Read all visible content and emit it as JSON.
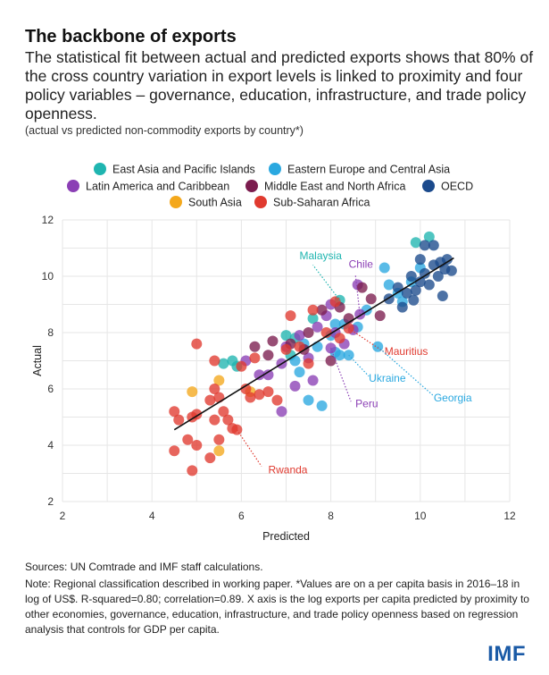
{
  "header": {
    "title": "The backbone of exports",
    "subtitle": "The statistical fit between actual and predicted exports shows that 80% of the cross country variation in export levels is linked to proximity and four policy variables – governance, education, infrastructure, and trade policy openness.",
    "note": "(actual vs predicted non-commodity exports by country*)"
  },
  "footer": {
    "sources": "Sources: UN Comtrade and IMF staff calculations.",
    "note": "Note: Regional classification described in working paper. *Values are on a per capita basis in 2016–18 in log of US$. R-squared=0.80; correlation=0.89. X axis is the log exports per capita predicted by proximity to other economies, governance, education, infrastructure, and trade policy openness based on regression analysis that controls for GDP per capita.",
    "logo": "IMF"
  },
  "chart_data": {
    "type": "scatter",
    "xlabel": "Predicted",
    "ylabel": "Actual",
    "xlim": [
      2,
      12
    ],
    "ylim": [
      2,
      12
    ],
    "xticks": [
      "2",
      "4",
      "6",
      "8",
      "10",
      "12"
    ],
    "yticks": [
      "2",
      "4",
      "6",
      "8",
      "10",
      "12"
    ],
    "grid": true,
    "legend_position": "top",
    "fit_line": {
      "x": [
        4.5,
        10.75
      ],
      "y": [
        4.55,
        10.65
      ]
    },
    "series": [
      {
        "name": "East Asia and Pacific Islands",
        "color": "#1fb5b0",
        "points": [
          [
            5.8,
            7.0
          ],
          [
            5.9,
            6.8
          ],
          [
            7.0,
            7.9
          ],
          [
            7.1,
            7.2
          ],
          [
            7.2,
            7.8
          ],
          [
            7.6,
            8.5
          ],
          [
            8.2,
            9.15
          ],
          [
            9.9,
            11.2
          ],
          [
            10.2,
            11.4
          ],
          [
            5.6,
            6.9
          ]
        ]
      },
      {
        "name": "Eastern Europe and Central Asia",
        "color": "#2aa8e0",
        "points": [
          [
            7.2,
            7.0
          ],
          [
            7.4,
            7.6
          ],
          [
            7.7,
            7.5
          ],
          [
            7.3,
            6.6
          ],
          [
            7.5,
            5.6
          ],
          [
            7.8,
            5.4
          ],
          [
            8.0,
            7.9
          ],
          [
            8.1,
            7.3
          ],
          [
            8.2,
            7.2
          ],
          [
            8.3,
            8.3
          ],
          [
            8.6,
            8.2
          ],
          [
            8.8,
            8.8
          ],
          [
            9.2,
            10.3
          ],
          [
            9.5,
            9.4
          ],
          [
            9.8,
            9.8
          ],
          [
            10.0,
            10.3
          ],
          [
            9.6,
            9.1
          ],
          [
            8.1,
            8.3
          ],
          [
            8.4,
            7.2
          ],
          [
            9.3,
            9.7
          ],
          [
            9.05,
            7.5
          ]
        ]
      },
      {
        "name": "Latin America and Caribbean",
        "color": "#8b3fb5",
        "points": [
          [
            6.4,
            6.5
          ],
          [
            6.6,
            6.5
          ],
          [
            6.9,
            6.9
          ],
          [
            7.0,
            7.5
          ],
          [
            7.3,
            7.9
          ],
          [
            7.5,
            7.1
          ],
          [
            7.7,
            8.2
          ],
          [
            7.9,
            8.6
          ],
          [
            8.0,
            9.0
          ],
          [
            8.1,
            8.0
          ],
          [
            8.3,
            7.6
          ],
          [
            8.5,
            8.1
          ],
          [
            7.6,
            6.3
          ],
          [
            6.9,
            5.2
          ],
          [
            7.2,
            6.1
          ],
          [
            6.1,
            7.0
          ],
          [
            8.65,
            8.65
          ],
          [
            8.0,
            7.45
          ],
          [
            8.6,
            9.7
          ]
        ]
      },
      {
        "name": "Middle East and North Africa",
        "color": "#7b1c4e",
        "points": [
          [
            6.3,
            7.5
          ],
          [
            6.6,
            7.2
          ],
          [
            7.1,
            7.6
          ],
          [
            7.5,
            8.0
          ],
          [
            7.8,
            8.8
          ],
          [
            8.0,
            7.0
          ],
          [
            8.2,
            8.9
          ],
          [
            8.4,
            8.5
          ],
          [
            8.7,
            9.6
          ],
          [
            9.1,
            8.6
          ],
          [
            7.4,
            7.4
          ],
          [
            6.7,
            7.7
          ],
          [
            8.9,
            9.2
          ]
        ]
      },
      {
        "name": "OECD",
        "color": "#1b4a8c",
        "points": [
          [
            9.3,
            9.2
          ],
          [
            9.5,
            9.6
          ],
          [
            9.6,
            8.9
          ],
          [
            9.7,
            9.4
          ],
          [
            9.8,
            10.0
          ],
          [
            9.9,
            9.5
          ],
          [
            10.0,
            9.8
          ],
          [
            10.1,
            10.1
          ],
          [
            10.2,
            9.7
          ],
          [
            10.3,
            10.4
          ],
          [
            10.4,
            10.0
          ],
          [
            10.5,
            9.3
          ],
          [
            10.6,
            10.6
          ],
          [
            10.7,
            10.2
          ],
          [
            10.3,
            11.1
          ],
          [
            10.1,
            11.1
          ],
          [
            10.45,
            10.5
          ],
          [
            9.85,
            9.15
          ],
          [
            10.55,
            10.25
          ],
          [
            10.0,
            10.6
          ]
        ]
      },
      {
        "name": "South Asia",
        "color": "#f4a81c",
        "points": [
          [
            4.9,
            5.9
          ],
          [
            5.5,
            6.3
          ],
          [
            5.5,
            3.8
          ],
          [
            6.2,
            5.9
          ]
        ]
      },
      {
        "name": "Sub-Saharan Africa",
        "color": "#e03a2f",
        "points": [
          [
            4.5,
            5.2
          ],
          [
            4.6,
            4.9
          ],
          [
            4.5,
            3.8
          ],
          [
            4.8,
            4.2
          ],
          [
            4.9,
            3.1
          ],
          [
            5.0,
            4.0
          ],
          [
            5.0,
            7.6
          ],
          [
            5.3,
            5.6
          ],
          [
            5.4,
            6.0
          ],
          [
            5.4,
            4.9
          ],
          [
            5.5,
            5.7
          ],
          [
            5.6,
            5.2
          ],
          [
            5.7,
            4.9
          ],
          [
            5.8,
            4.6
          ],
          [
            5.9,
            4.55
          ],
          [
            6.0,
            6.8
          ],
          [
            6.2,
            5.7
          ],
          [
            6.4,
            5.8
          ],
          [
            6.6,
            5.9
          ],
          [
            6.8,
            5.6
          ],
          [
            7.0,
            7.4
          ],
          [
            7.1,
            8.6
          ],
          [
            7.3,
            7.5
          ],
          [
            7.6,
            8.8
          ],
          [
            7.9,
            8.0
          ],
          [
            8.1,
            9.1
          ],
          [
            8.4,
            8.15
          ],
          [
            5.3,
            3.55
          ],
          [
            5.4,
            7.0
          ],
          [
            6.1,
            6.0
          ],
          [
            5.5,
            4.2
          ],
          [
            4.9,
            5.0
          ],
          [
            5.0,
            5.1
          ],
          [
            6.3,
            7.1
          ],
          [
            7.5,
            6.9
          ],
          [
            8.2,
            7.8
          ]
        ]
      }
    ],
    "annotations": [
      {
        "label": "Malaysia",
        "color": "#1fb5b0",
        "point": [
          8.2,
          9.15
        ],
        "text_at": [
          7.3,
          10.6
        ],
        "line_to": [
          7.6,
          10.4
        ]
      },
      {
        "label": "Chile",
        "color": "#8b3fb5",
        "point": [
          8.65,
          8.65
        ],
        "text_at": [
          8.4,
          10.3
        ],
        "line_to": [
          8.55,
          10.05
        ]
      },
      {
        "label": "Mauritius",
        "color": "#e03a2f",
        "point": [
          8.4,
          8.15
        ],
        "text_at": [
          9.2,
          7.2
        ],
        "line_to": [
          9.2,
          7.3
        ]
      },
      {
        "label": "Ukraine",
        "color": "#2aa8e0",
        "point": [
          8.4,
          7.2
        ],
        "text_at": [
          8.85,
          6.25
        ],
        "line_to": [
          8.85,
          6.45
        ]
      },
      {
        "label": "Georgia",
        "color": "#2aa8e0",
        "point": [
          9.05,
          7.5
        ],
        "text_at": [
          10.3,
          5.55
        ],
        "line_to": [
          10.3,
          5.75
        ]
      },
      {
        "label": "Peru",
        "color": "#8b3fb5",
        "point": [
          8.0,
          7.45
        ],
        "text_at": [
          8.55,
          5.35
        ],
        "line_to": [
          8.45,
          5.55
        ]
      },
      {
        "label": "Rwanda",
        "color": "#e03a2f",
        "point": [
          5.9,
          4.55
        ],
        "text_at": [
          6.6,
          3.0
        ],
        "line_to": [
          6.45,
          3.25
        ]
      }
    ]
  }
}
